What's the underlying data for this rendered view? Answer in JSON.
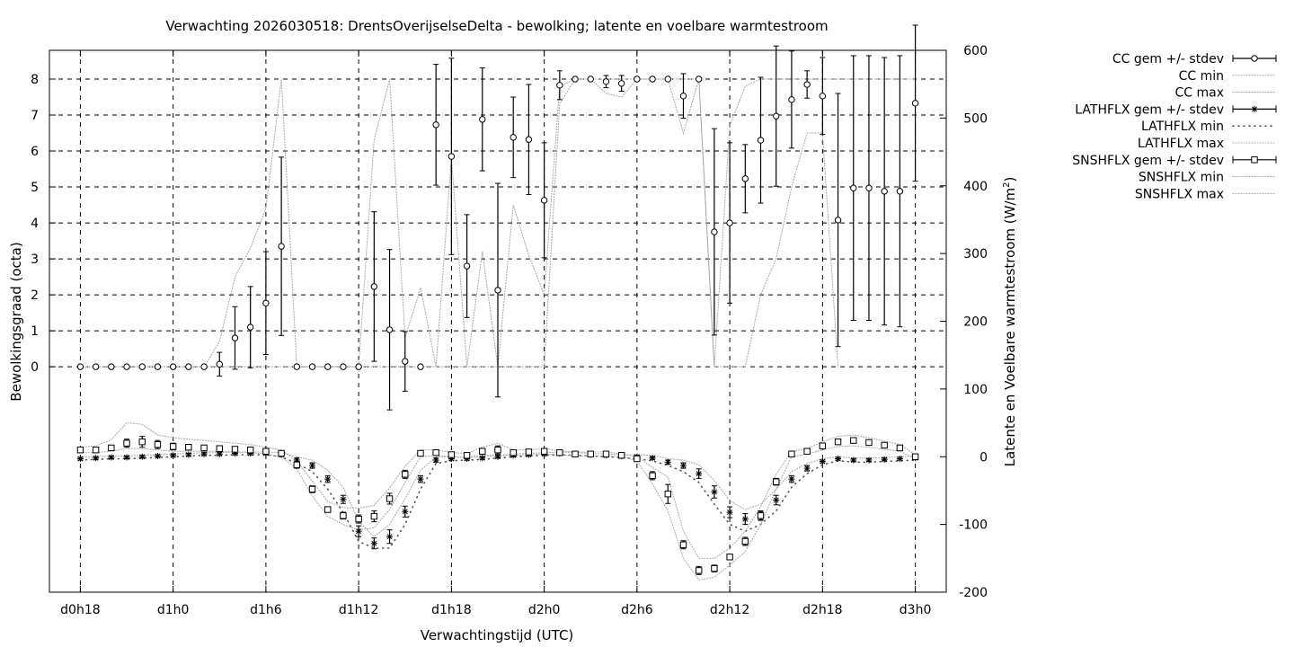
{
  "chart_data": {
    "type": "line",
    "title": "Verwachting 2026030518: DrentsOverijselseDelta - bewolking; latente en voelbare warmtestroom",
    "xlabel": "Verwachtingstijd (UTC)",
    "ylabel": "Bewolkingsgraad (octa)",
    "y2label": "Latente en Voelbare warmtestroom (W/m²)",
    "y2label_main": "Latente en Voelbare warmtestroom (W/m",
    "y2label_sup": "2",
    "y2label_tail": ")",
    "x_ticks": [
      "d0h18",
      "d1h0",
      "d1h6",
      "d1h12",
      "d1h18",
      "d2h0",
      "d2h6",
      "d2h12",
      "d2h18",
      "d3h0"
    ],
    "x_tick_hours": [
      18,
      24,
      30,
      36,
      42,
      48,
      54,
      60,
      66,
      72
    ],
    "xlim_hours": [
      16,
      74
    ],
    "y_ticks": [
      "0",
      "1",
      "2",
      "3",
      "4",
      "5",
      "6",
      "7",
      "8"
    ],
    "ylim": [
      -6.27,
      8.8
    ],
    "y2_ticks": [
      "-200",
      "-100",
      "0",
      "100",
      "200",
      "300",
      "400",
      "500",
      "600"
    ],
    "y2lim": [
      -200,
      600
    ],
    "grid": true,
    "legend_position": "outside-right",
    "legend": [
      {
        "label": "CC gem +/- stdev",
        "style": "circle-errorbar"
      },
      {
        "label": "CC min",
        "style": "dotted"
      },
      {
        "label": "CC max",
        "style": "dotted"
      },
      {
        "label": "LATHFLX gem +/- stdev",
        "style": "star-errorbar"
      },
      {
        "label": "LATHFLX min",
        "style": "sparse-dots"
      },
      {
        "label": "LATHFLX max",
        "style": "dotted"
      },
      {
        "label": "SNSHFLX gem +/- stdev",
        "style": "square-errorbar"
      },
      {
        "label": "SNSHFLX min",
        "style": "dotted"
      },
      {
        "label": "SNSHFLX max",
        "style": "dotted"
      }
    ],
    "hours": [
      18,
      19,
      20,
      21,
      22,
      23,
      24,
      25,
      26,
      27,
      28,
      29,
      30,
      31,
      32,
      33,
      34,
      35,
      36,
      37,
      38,
      39,
      40,
      41,
      42,
      43,
      44,
      45,
      46,
      47,
      48,
      49,
      50,
      51,
      52,
      53,
      54,
      55,
      56,
      57,
      58,
      59,
      60,
      61,
      62,
      63,
      64,
      65,
      66,
      67,
      68,
      69,
      70,
      71,
      72
    ],
    "series": [
      {
        "name": "CC gem +/- stdev",
        "axis": "left",
        "marker": "circle",
        "mean": [
          0,
          0,
          0,
          0,
          0,
          0,
          0,
          0,
          0,
          0.07,
          0.8,
          1.1,
          1.77,
          3.35,
          0,
          0,
          0,
          0,
          0,
          2.23,
          1.03,
          0.15,
          0,
          6.73,
          5.85,
          2.8,
          6.88,
          2.13,
          6.38,
          6.32,
          4.63,
          7.83,
          8,
          8,
          7.93,
          7.88,
          8,
          8,
          8,
          7.53,
          8,
          3.75,
          4,
          5.23,
          6.3,
          6.97,
          7.43,
          7.85,
          7.53,
          4.08,
          4.97,
          4.97,
          4.88,
          4.88,
          7.33
        ],
        "stdev": [
          0,
          0,
          0,
          0,
          0,
          0,
          0,
          0,
          0,
          0.33,
          0.87,
          1.13,
          1.43,
          2.48,
          0,
          0,
          0,
          0,
          0,
          2.08,
          2.23,
          0.83,
          0,
          1.68,
          2.73,
          1.43,
          1.43,
          2.97,
          1.12,
          1.53,
          1.6,
          0.4,
          0,
          0,
          0.17,
          0.22,
          0,
          0,
          0,
          0.62,
          0,
          2.87,
          2.23,
          0.95,
          1.75,
          1.95,
          1.35,
          0.38,
          1.07,
          3.52,
          3.68,
          3.68,
          3.72,
          3.77,
          2.17
        ]
      },
      {
        "name": "CC min",
        "axis": "left",
        "values": [
          0,
          0,
          0,
          0,
          0,
          0,
          0,
          0,
          0,
          0,
          0,
          0,
          0,
          0,
          0,
          0,
          0,
          0,
          0,
          0,
          0,
          0,
          0,
          0,
          0,
          0,
          0,
          0,
          0,
          0,
          0,
          7.3,
          8,
          8,
          7.6,
          7.5,
          8,
          8,
          8,
          6.5,
          8,
          0,
          0,
          0,
          2,
          3,
          5,
          6.5,
          6.5,
          0,
          null,
          null,
          null,
          null,
          null
        ]
      },
      {
        "name": "CC max",
        "axis": "left",
        "values": [
          0,
          0,
          0,
          0,
          0,
          0,
          0,
          0,
          0,
          0.7,
          2.5,
          3.3,
          4.4,
          8,
          0,
          0,
          0,
          0,
          0,
          6.3,
          8,
          0.8,
          2.2,
          0,
          5.8,
          0,
          3.2,
          0,
          4.5,
          3.1,
          2,
          7.8,
          8,
          8,
          8,
          8,
          8,
          8,
          8,
          8,
          8,
          0,
          6.7,
          7.8,
          8,
          8,
          8,
          8,
          8,
          8,
          8,
          8,
          8,
          8,
          8
        ]
      },
      {
        "name": "LATHFLX gem +/- stdev",
        "axis": "right",
        "marker": "star",
        "mean": [
          -3,
          -2,
          -1,
          -1,
          0,
          1,
          2,
          3,
          4,
          4,
          5,
          5,
          5,
          3,
          -5,
          -13,
          -33,
          -63,
          -110,
          -128,
          -118,
          -81,
          -33,
          -5,
          -3,
          -3,
          -2,
          0,
          2,
          3,
          4,
          5,
          4,
          3,
          2,
          1,
          0,
          -2,
          -8,
          -13,
          -25,
          -52,
          -82,
          -92,
          -87,
          -64,
          -33,
          -17,
          -7,
          -3,
          -5,
          -5,
          -4,
          -3,
          -2
        ],
        "stdev": [
          2,
          2,
          2,
          2,
          2,
          2,
          2,
          2,
          2,
          2,
          2,
          2,
          2,
          2,
          3,
          4,
          5,
          6,
          8,
          8,
          10,
          8,
          5,
          3,
          2,
          2,
          2,
          2,
          2,
          2,
          2,
          2,
          2,
          2,
          2,
          2,
          2,
          2,
          3,
          4,
          7,
          9,
          8,
          8,
          7,
          7,
          5,
          4,
          2,
          2,
          2,
          2,
          2,
          2,
          2
        ]
      },
      {
        "name": "LATHFLX min",
        "axis": "right",
        "values": [
          -5,
          -4,
          -3,
          -3,
          -2,
          -1,
          0,
          1,
          2,
          2,
          3,
          3,
          3,
          0,
          -10,
          -22,
          -48,
          -82,
          -125,
          -135,
          -135,
          -100,
          -48,
          -10,
          -6,
          -5,
          -4,
          -2,
          0,
          1,
          2,
          3,
          2,
          1,
          0,
          -1,
          -3,
          -6,
          -13,
          -22,
          -38,
          -70,
          -100,
          -110,
          -100,
          -80,
          -45,
          -25,
          -12,
          -6,
          -8,
          -8,
          -7,
          -6,
          -5
        ]
      },
      {
        "name": "LATHFLX max",
        "axis": "right",
        "values": [
          -1,
          0,
          1,
          1,
          2,
          3,
          4,
          5,
          6,
          6,
          7,
          7,
          7,
          6,
          0,
          -5,
          -20,
          -45,
          -95,
          -118,
          -100,
          -62,
          -20,
          0,
          0,
          -1,
          0,
          2,
          4,
          5,
          6,
          7,
          6,
          5,
          4,
          3,
          3,
          2,
          -3,
          -5,
          -12,
          -35,
          -65,
          -78,
          -70,
          -48,
          -22,
          -10,
          -3,
          0,
          -2,
          -2,
          -1,
          0,
          1
        ]
      },
      {
        "name": "SNSHFLX gem +/- stdev",
        "axis": "right",
        "marker": "square",
        "mean": [
          10,
          10,
          13,
          20,
          22,
          18,
          15,
          14,
          13,
          12,
          11,
          10,
          8,
          5,
          -12,
          -48,
          -78,
          -87,
          -92,
          -88,
          -62,
          -26,
          5,
          6,
          3,
          2,
          8,
          10,
          6,
          7,
          8,
          6,
          4,
          4,
          4,
          2,
          -3,
          -28,
          -55,
          -130,
          -168,
          -165,
          -148,
          -125,
          -87,
          -37,
          4,
          8,
          16,
          22,
          24,
          21,
          17,
          13,
          0
        ],
        "stdev": [
          3,
          3,
          4,
          6,
          8,
          6,
          5,
          4,
          4,
          3,
          3,
          3,
          3,
          3,
          5,
          5,
          4,
          5,
          6,
          8,
          8,
          6,
          3,
          3,
          2,
          2,
          4,
          6,
          3,
          3,
          3,
          2,
          2,
          2,
          2,
          2,
          2,
          6,
          14,
          6,
          6,
          5,
          3,
          6,
          6,
          5,
          3,
          3,
          3,
          3,
          3,
          3,
          3,
          3,
          3
        ]
      },
      {
        "name": "SNSHFLX min",
        "axis": "right",
        "values": [
          6,
          6,
          8,
          12,
          12,
          10,
          8,
          8,
          8,
          8,
          7,
          6,
          4,
          0,
          -18,
          -58,
          -88,
          -100,
          -108,
          -105,
          -78,
          -38,
          0,
          2,
          0,
          -1,
          2,
          2,
          2,
          3,
          4,
          3,
          1,
          1,
          1,
          0,
          -6,
          -40,
          -80,
          -150,
          -182,
          -178,
          -160,
          -140,
          -100,
          -48,
          0,
          4,
          10,
          15,
          16,
          14,
          11,
          8,
          -3
        ]
      },
      {
        "name": "SNSHFLX max",
        "axis": "right",
        "values": [
          14,
          16,
          25,
          50,
          48,
          32,
          28,
          26,
          24,
          22,
          20,
          18,
          14,
          10,
          -6,
          -36,
          -66,
          -75,
          -76,
          -72,
          -46,
          -14,
          10,
          10,
          6,
          5,
          14,
          20,
          10,
          10,
          12,
          9,
          7,
          7,
          7,
          4,
          0,
          -16,
          -30,
          -110,
          -150,
          -150,
          -135,
          -110,
          -74,
          -26,
          8,
          12,
          22,
          30,
          32,
          28,
          23,
          18,
          3
        ]
      }
    ]
  }
}
